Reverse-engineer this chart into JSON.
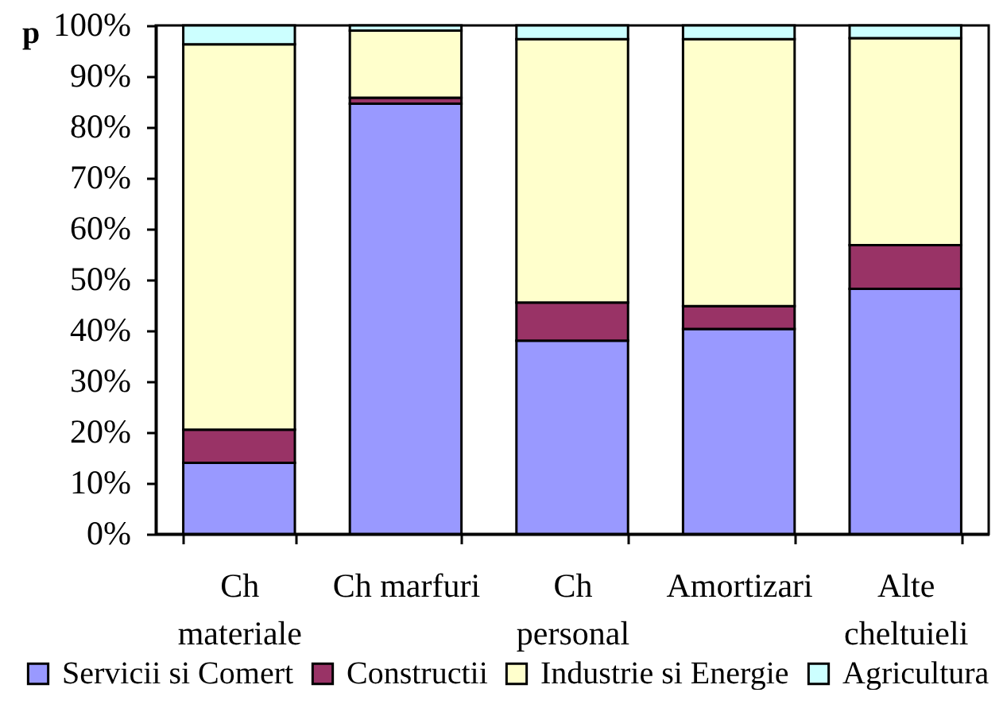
{
  "chart_data": {
    "type": "bar",
    "title": "p",
    "categories": [
      "Ch materiale",
      "Ch marfuri",
      "Ch personal",
      "Amortizari",
      "Alte cheltuieli"
    ],
    "stacked": true,
    "series": [
      {
        "name": "Servicii si Comert",
        "color": "#9999ff",
        "values": [
          14,
          84.6,
          38,
          40.3,
          48.2
        ]
      },
      {
        "name": "Constructii",
        "color": "#993366",
        "values": [
          6.5,
          1.2,
          7.5,
          4.5,
          8.6
        ]
      },
      {
        "name": "Industrie si Energie",
        "color": "#ffffcc",
        "values": [
          75.8,
          13.2,
          51.8,
          52.5,
          40.7
        ]
      },
      {
        "name": "Agricultura",
        "color": "#ccffff",
        "values": [
          3.7,
          1,
          2.7,
          2.7,
          2.5
        ]
      }
    ],
    "ylim": [
      0,
      100
    ],
    "yticks": [
      {
        "value": 0,
        "label": "0%"
      },
      {
        "value": 10,
        "label": "10%"
      },
      {
        "value": 20,
        "label": "20%"
      },
      {
        "value": 30,
        "label": "30%"
      },
      {
        "value": 40,
        "label": "40%"
      },
      {
        "value": 50,
        "label": "50%"
      },
      {
        "value": 60,
        "label": "60%"
      },
      {
        "value": 70,
        "label": "70%"
      },
      {
        "value": 80,
        "label": "80%"
      },
      {
        "value": 90,
        "label": "90%"
      },
      {
        "value": 100,
        "label": "100%"
      }
    ],
    "legend": "bottom"
  }
}
